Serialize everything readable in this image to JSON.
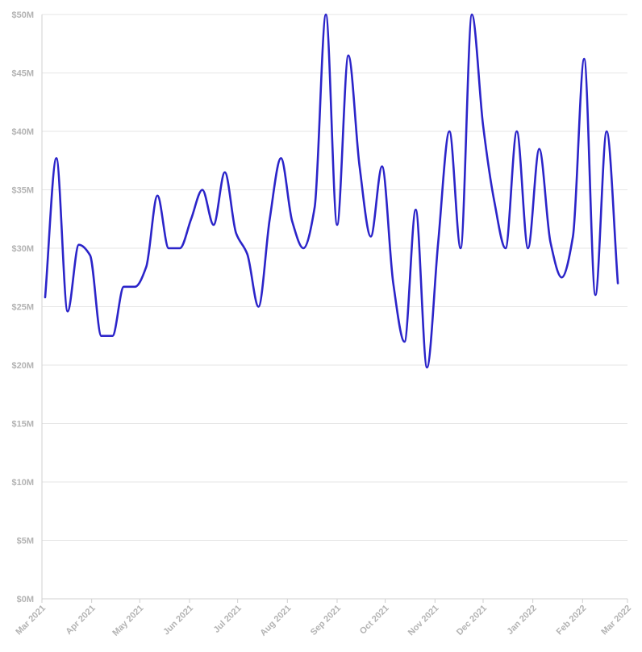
{
  "chart_data": {
    "type": "line",
    "title": "",
    "xlabel": "",
    "ylabel": "",
    "y_tick_labels": [
      "$0M",
      "$5M",
      "$10M",
      "$15M",
      "$20M",
      "$25M",
      "$30M",
      "$35M",
      "$40M",
      "$45M",
      "$50M"
    ],
    "y_ticks": [
      0,
      5,
      10,
      15,
      20,
      25,
      30,
      35,
      40,
      45,
      50
    ],
    "ylim": [
      0,
      50
    ],
    "x_tick_labels": [
      "Mar 2021",
      "Apr 2021",
      "May 2021",
      "Jun 2021",
      "Jul 2021",
      "Aug 2021",
      "Sep 2021",
      "Oct 2021",
      "Nov 2021",
      "Dec 2021",
      "Jan 2022",
      "Feb 2022",
      "Mar 2022"
    ],
    "x_ticks": [
      "2021-03-01",
      "2021-04-01",
      "2021-05-01",
      "2021-06-01",
      "2021-07-01",
      "2021-08-01",
      "2021-09-01",
      "2021-10-01",
      "2021-11-01",
      "2021-12-01",
      "2022-01-01",
      "2022-02-01",
      "2022-03-01"
    ],
    "xlim": [
      "2021-03-01",
      "2022-03-01"
    ],
    "grid": true,
    "legend": "none",
    "series": [
      {
        "color": "#2b24c9",
        "x": [
          "2021-03-03",
          "2021-03-10",
          "2021-03-17",
          "2021-03-24",
          "2021-03-31",
          "2021-04-07",
          "2021-04-14",
          "2021-04-21",
          "2021-04-28",
          "2021-05-05",
          "2021-05-12",
          "2021-05-19",
          "2021-05-26",
          "2021-06-02",
          "2021-06-09",
          "2021-06-16",
          "2021-06-23",
          "2021-06-30",
          "2021-07-07",
          "2021-07-14",
          "2021-07-21",
          "2021-07-28",
          "2021-08-04",
          "2021-08-11",
          "2021-08-18",
          "2021-08-25",
          "2021-09-01",
          "2021-09-08",
          "2021-09-15",
          "2021-09-22",
          "2021-09-29",
          "2021-10-06",
          "2021-10-13",
          "2021-10-20",
          "2021-10-27",
          "2021-11-03",
          "2021-11-10",
          "2021-11-17",
          "2021-11-24",
          "2021-12-01",
          "2021-12-08",
          "2021-12-15",
          "2021-12-22",
          "2021-12-29",
          "2022-01-05",
          "2022-01-12",
          "2022-01-19",
          "2022-01-26",
          "2022-02-02",
          "2022-02-09",
          "2022-02-16",
          "2022-02-23"
        ],
        "values": [
          25.8,
          37.7,
          24.6,
          30.3,
          29.4,
          22.5,
          22.5,
          26.7,
          26.7,
          28.4,
          34.5,
          30.0,
          30.0,
          32.5,
          35.0,
          32.0,
          36.5,
          31.3,
          29.5,
          25.0,
          32.5,
          37.7,
          32.3,
          30.0,
          33.5,
          50.0,
          32.0,
          46.5,
          37.0,
          31.0,
          37.0,
          27.0,
          22.0,
          33.3,
          19.8,
          30.5,
          40.0,
          30.0,
          50.0,
          40.5,
          34.0,
          30.0,
          40.0,
          30.0,
          38.5,
          30.5,
          27.5,
          31.0,
          46.2,
          26.0,
          40.0,
          27.0
        ]
      }
    ]
  }
}
